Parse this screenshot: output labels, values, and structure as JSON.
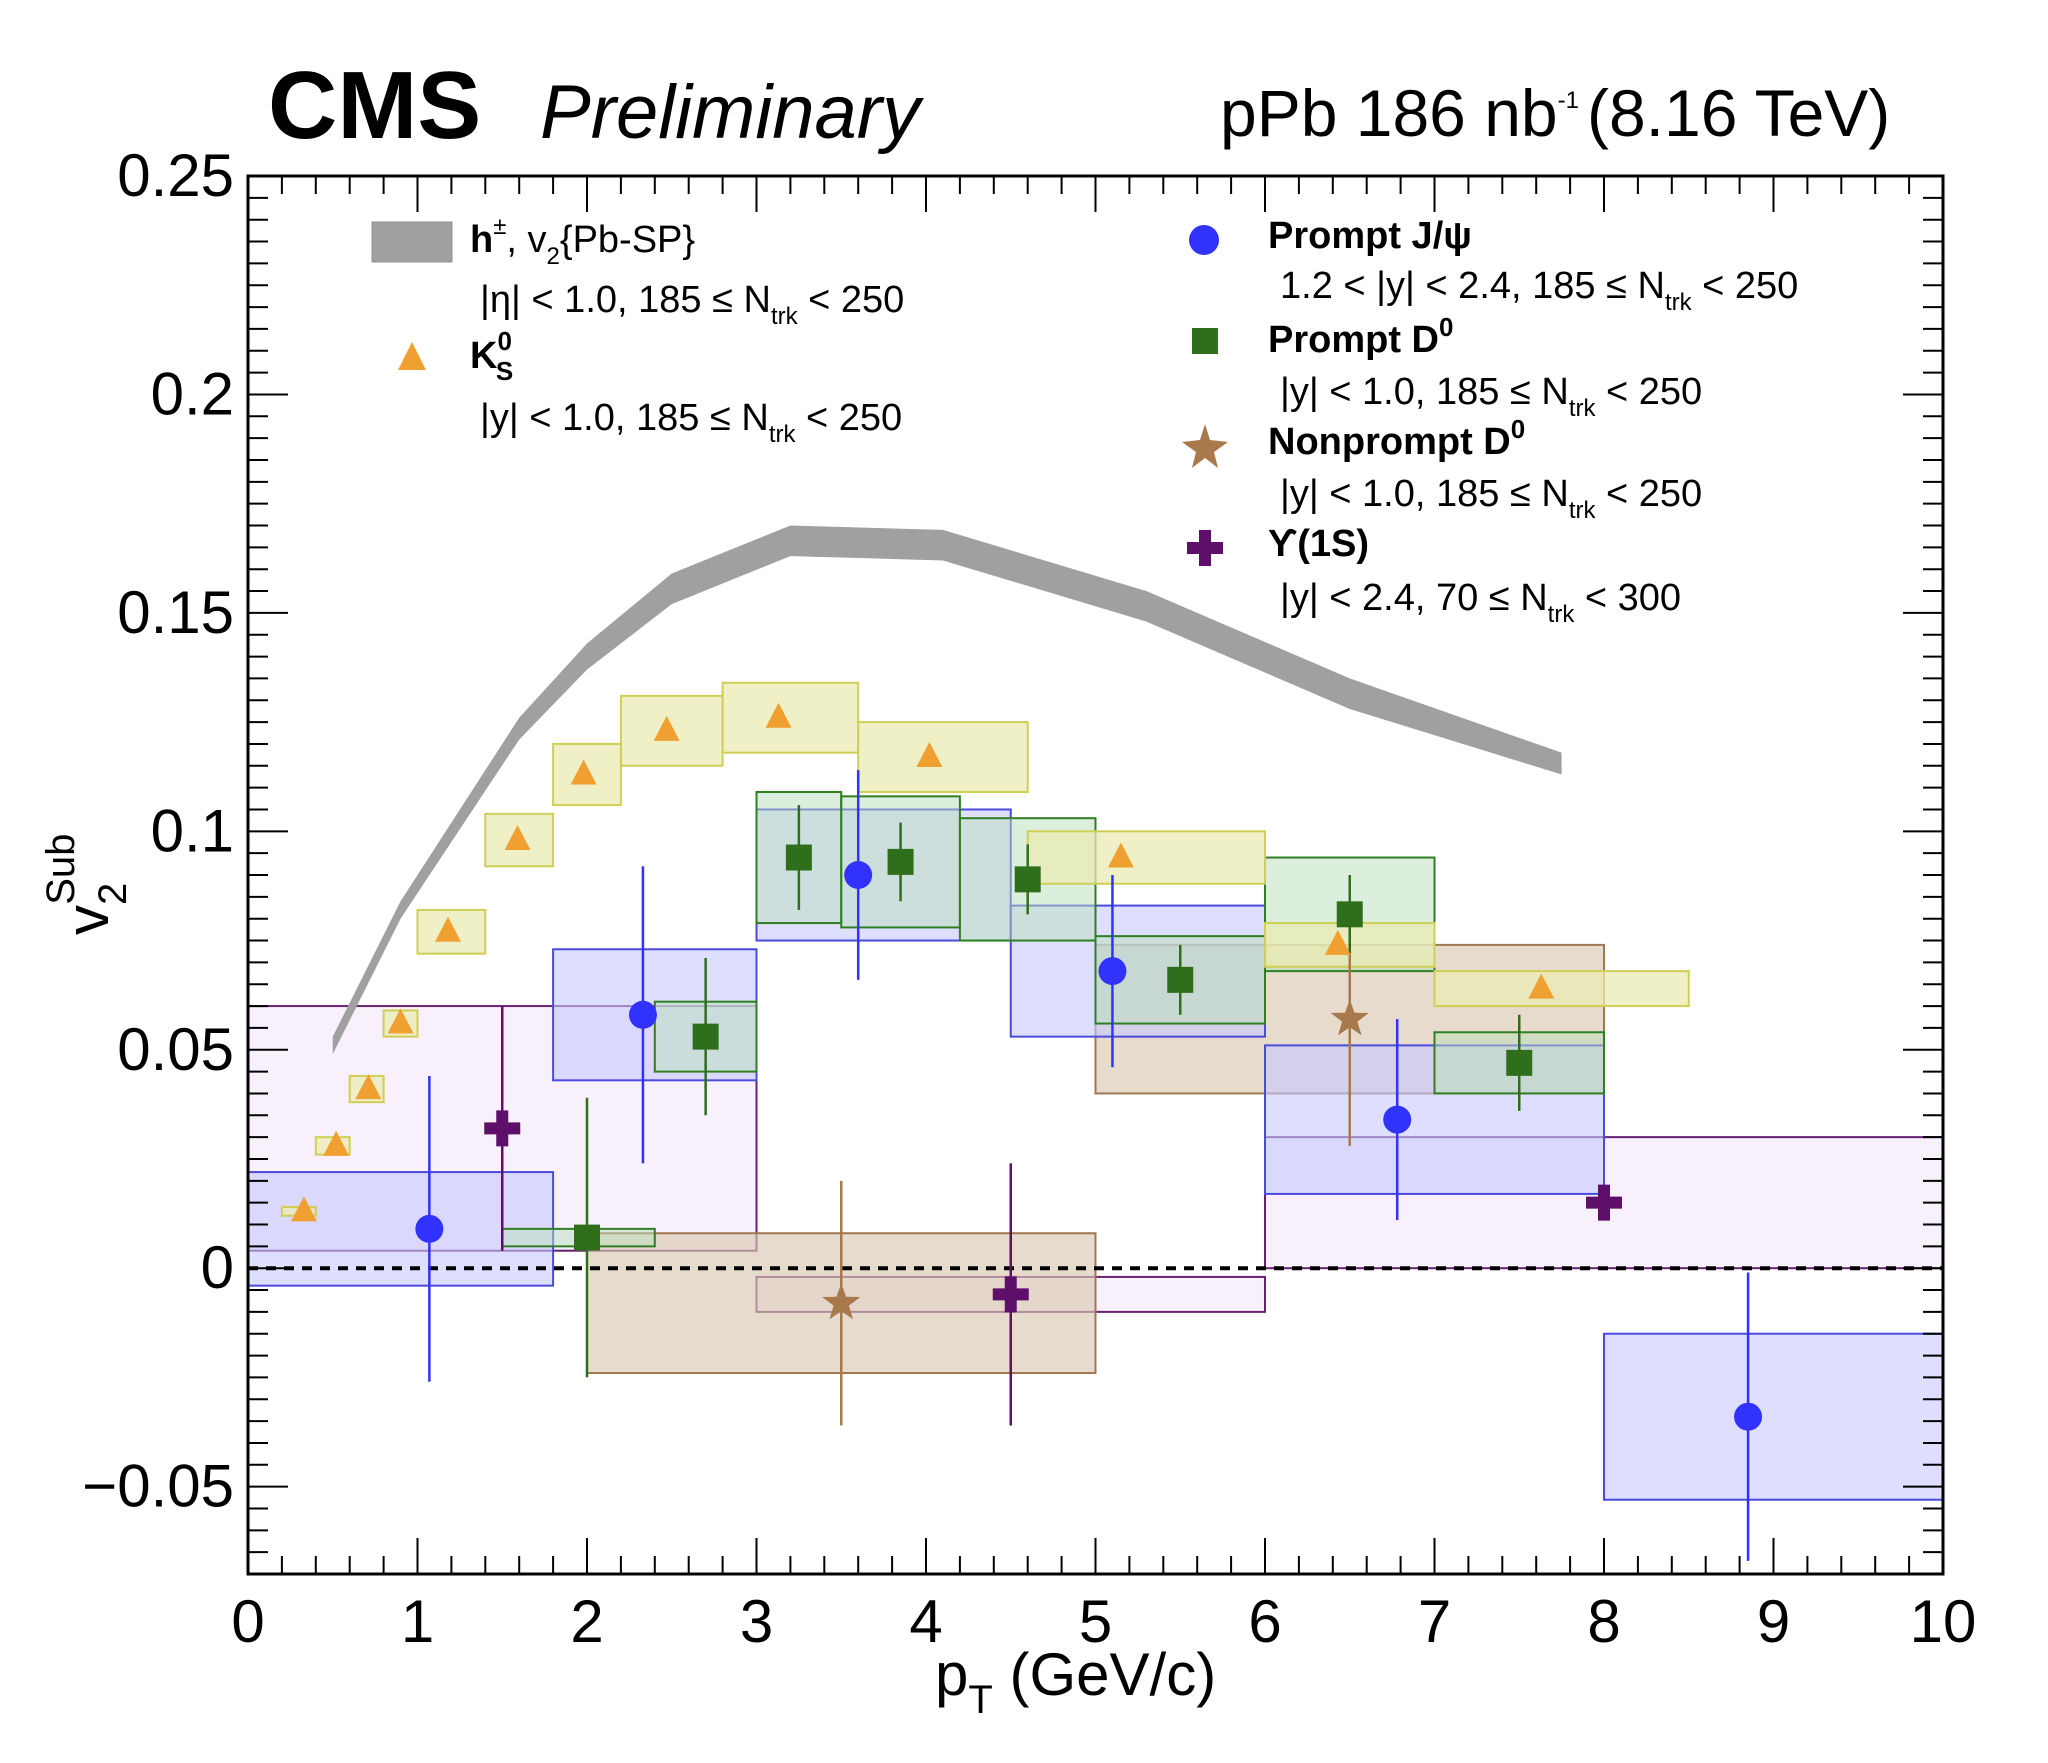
{
  "header": {
    "experiment": "CMS",
    "status": "Preliminary",
    "lumi_system": "pPb 186 nb",
    "lumi_exponent": "-1",
    "energy": "(8.16 TeV)"
  },
  "legend": {
    "hadrons": {
      "label_main": "h",
      "label_sup": "±",
      "label_rest_a": ", v",
      "label_rest_sub": "2",
      "label_rest_b": "{Pb-SP}",
      "cut_a": "|η| < 1.0, 185 ≤ N",
      "cut_sub": "trk",
      "cut_b": " < 250"
    },
    "kshort": {
      "label_main": "K",
      "label_sup": "0",
      "label_sub": "S",
      "cut_a": "|y| < 1.0, 185 ≤ N",
      "cut_sub": "trk",
      "cut_b": " < 250"
    },
    "jpsi": {
      "label": "Prompt J/ψ",
      "cut_a": "1.2 < |y| < 2.4, 185 ≤ N",
      "cut_sub": "trk",
      "cut_b": " < 250"
    },
    "d0": {
      "label": "Prompt D",
      "label_sup": "0",
      "cut_a": "|y| < 1.0, 185 ≤ N",
      "cut_sub": "trk",
      "cut_b": " < 250"
    },
    "npd0": {
      "label": "Nonprompt D",
      "label_sup": "0",
      "cut_a": "|y| < 1.0, 185 ≤ N",
      "cut_sub": "trk",
      "cut_b": " < 250"
    },
    "upsilon": {
      "label": "ϒ(1S)",
      "cut_a": "|y| < 2.4, 70 ≤ N",
      "cut_sub": "trk",
      "cut_b": " < 300"
    }
  },
  "colors": {
    "band": "#a0a0a0",
    "kshort_marker": "#f0a030",
    "kshort_box_fill": "#ebebb4",
    "kshort_box_edge": "#cfcf55",
    "jpsi_marker": "#3232ff",
    "jpsi_box_fill": "#c8c8ff",
    "jpsi_box_edge": "#4b4bdb",
    "d0_marker": "#2f6f1c",
    "d0_box_fill": "#b9e0b9",
    "d0_box_edge": "#2f7f22",
    "npd0_marker": "#a8794a",
    "npd0_box_fill": "#d8c8b0",
    "npd0_box_edge": "#a07850",
    "upsilon_marker": "#5e0f6a",
    "upsilon_box_fill": "#f4e8fa",
    "upsilon_box_edge": "#6a2072"
  },
  "chart_data": {
    "type": "scatter",
    "xlabel_main": "p",
    "xlabel_sub": "T",
    "xlabel_rest": " (GeV/c)",
    "ylabel_main": "v",
    "ylabel_sub": "2",
    "ylabel_sup": "Sub",
    "xlim": [
      0,
      10
    ],
    "ylim": [
      -0.07,
      0.25
    ],
    "x_ticks": [
      0,
      1,
      2,
      3,
      4,
      5,
      6,
      7,
      8,
      9,
      10
    ],
    "x_tick_labels": [
      "0",
      "1",
      "2",
      "3",
      "4",
      "5",
      "6",
      "7",
      "8",
      "9",
      "10"
    ],
    "y_ticks": [
      -0.05,
      0,
      0.05,
      0.1,
      0.15,
      0.2,
      0.25
    ],
    "y_tick_labels": [
      "−0.05",
      "0",
      "0.05",
      "0.1",
      "0.15",
      "0.2",
      "0.25"
    ],
    "reference_line_y": 0,
    "band": {
      "name": "h± v2{Pb-SP}",
      "x": [
        0.5,
        0.9,
        1.6,
        2.0,
        2.5,
        3.2,
        4.1,
        5.3,
        6.5,
        7.75
      ],
      "low": [
        0.049,
        0.08,
        0.121,
        0.137,
        0.152,
        0.163,
        0.162,
        0.148,
        0.128,
        0.113
      ],
      "high": [
        0.053,
        0.084,
        0.126,
        0.143,
        0.159,
        0.17,
        0.169,
        0.155,
        0.135,
        0.118
      ]
    },
    "series": [
      {
        "name": "K0S",
        "marker": "triangle",
        "points": [
          {
            "x": 0.33,
            "y": 0.013,
            "err": 0,
            "xlo": 0.2,
            "xhi": 0.4,
            "sys": 0.001
          },
          {
            "x": 0.52,
            "y": 0.028,
            "err": 0,
            "xlo": 0.4,
            "xhi": 0.6,
            "sys": 0.002
          },
          {
            "x": 0.71,
            "y": 0.041,
            "err": 0,
            "xlo": 0.6,
            "xhi": 0.8,
            "sys": 0.003
          },
          {
            "x": 0.9,
            "y": 0.056,
            "err": 0,
            "xlo": 0.8,
            "xhi": 1.0,
            "sys": 0.003
          },
          {
            "x": 1.18,
            "y": 0.077,
            "err": 0,
            "xlo": 1.0,
            "xhi": 1.4,
            "sys": 0.005
          },
          {
            "x": 1.59,
            "y": 0.098,
            "err": 0,
            "xlo": 1.4,
            "xhi": 1.8,
            "sys": 0.006
          },
          {
            "x": 1.98,
            "y": 0.113,
            "err": 0,
            "xlo": 1.8,
            "xhi": 2.2,
            "sys": 0.007
          },
          {
            "x": 2.47,
            "y": 0.123,
            "err": 0,
            "xlo": 2.2,
            "xhi": 2.8,
            "sys": 0.008
          },
          {
            "x": 3.13,
            "y": 0.126,
            "err": 0,
            "xlo": 2.8,
            "xhi": 3.6,
            "sys": 0.008
          },
          {
            "x": 4.02,
            "y": 0.117,
            "err": 0,
            "xlo": 3.6,
            "xhi": 4.6,
            "sys": 0.008
          },
          {
            "x": 5.15,
            "y": 0.094,
            "err": 0,
            "xlo": 4.6,
            "xhi": 6.0,
            "sys": 0.006
          },
          {
            "x": 6.43,
            "y": 0.074,
            "err": 0,
            "xlo": 6.0,
            "xhi": 7.0,
            "sys": 0.005
          },
          {
            "x": 7.63,
            "y": 0.064,
            "err": 0,
            "xlo": 7.0,
            "xhi": 8.5,
            "sys": 0.004
          }
        ]
      },
      {
        "name": "Prompt J/psi",
        "marker": "circle",
        "points": [
          {
            "x": 1.07,
            "y": 0.009,
            "err": 0.035,
            "xlo": 0.0,
            "xhi": 1.8,
            "sys": 0.013
          },
          {
            "x": 2.33,
            "y": 0.058,
            "err": 0.034,
            "xlo": 1.8,
            "xhi": 3.0,
            "sys": 0.015
          },
          {
            "x": 3.6,
            "y": 0.09,
            "err": 0.024,
            "xlo": 3.0,
            "xhi": 4.5,
            "sys": 0.015
          },
          {
            "x": 5.1,
            "y": 0.068,
            "err": 0.022,
            "xlo": 4.5,
            "xhi": 6.0,
            "sys": 0.015
          },
          {
            "x": 6.78,
            "y": 0.034,
            "err": 0.023,
            "xlo": 6.0,
            "xhi": 8.0,
            "sys": 0.017
          },
          {
            "x": 8.85,
            "y": -0.034,
            "err": 0.033,
            "xlo": 8.0,
            "xhi": 10.0,
            "sys": 0.019
          }
        ]
      },
      {
        "name": "Prompt D0",
        "marker": "square",
        "points": [
          {
            "x": 2.0,
            "y": 0.007,
            "err": 0.032,
            "xlo": 1.5,
            "xhi": 2.4,
            "sys": 0.002
          },
          {
            "x": 2.7,
            "y": 0.053,
            "err": 0.018,
            "xlo": 2.4,
            "xhi": 3.0,
            "sys": 0.008
          },
          {
            "x": 3.25,
            "y": 0.094,
            "err": 0.012,
            "xlo": 3.0,
            "xhi": 3.5,
            "sys": 0.015
          },
          {
            "x": 3.85,
            "y": 0.093,
            "err": 0.009,
            "xlo": 3.5,
            "xhi": 4.2,
            "sys": 0.015
          },
          {
            "x": 4.6,
            "y": 0.089,
            "err": 0.008,
            "xlo": 4.2,
            "xhi": 5.0,
            "sys": 0.014
          },
          {
            "x": 5.5,
            "y": 0.066,
            "err": 0.008,
            "xlo": 5.0,
            "xhi": 6.0,
            "sys": 0.01
          },
          {
            "x": 6.5,
            "y": 0.081,
            "err": 0.009,
            "xlo": 6.0,
            "xhi": 7.0,
            "sys": 0.013
          },
          {
            "x": 7.5,
            "y": 0.047,
            "err": 0.011,
            "xlo": 7.0,
            "xhi": 8.0,
            "sys": 0.007
          }
        ]
      },
      {
        "name": "Nonprompt D0",
        "marker": "star",
        "points": [
          {
            "x": 3.5,
            "y": -0.008,
            "err": 0.028,
            "xlo": 2.0,
            "xhi": 5.0,
            "sys": 0.016
          },
          {
            "x": 6.5,
            "y": 0.057,
            "err": 0.029,
            "xlo": 5.0,
            "xhi": 8.0,
            "sys": 0.017
          }
        ]
      },
      {
        "name": "Upsilon(1S)",
        "marker": "cross",
        "points": [
          {
            "x": 1.5,
            "y": 0.032,
            "err": 0.028,
            "xlo": 0.0,
            "xhi": 3.0,
            "sys": 0.028
          },
          {
            "x": 4.5,
            "y": -0.006,
            "err": 0.03,
            "xlo": 3.0,
            "xhi": 6.0,
            "sys": 0.004
          },
          {
            "x": 8.0,
            "y": 0.015,
            "err": 0.0,
            "xlo": 6.0,
            "xhi": 10.0,
            "sys": 0.015
          }
        ]
      }
    ]
  }
}
